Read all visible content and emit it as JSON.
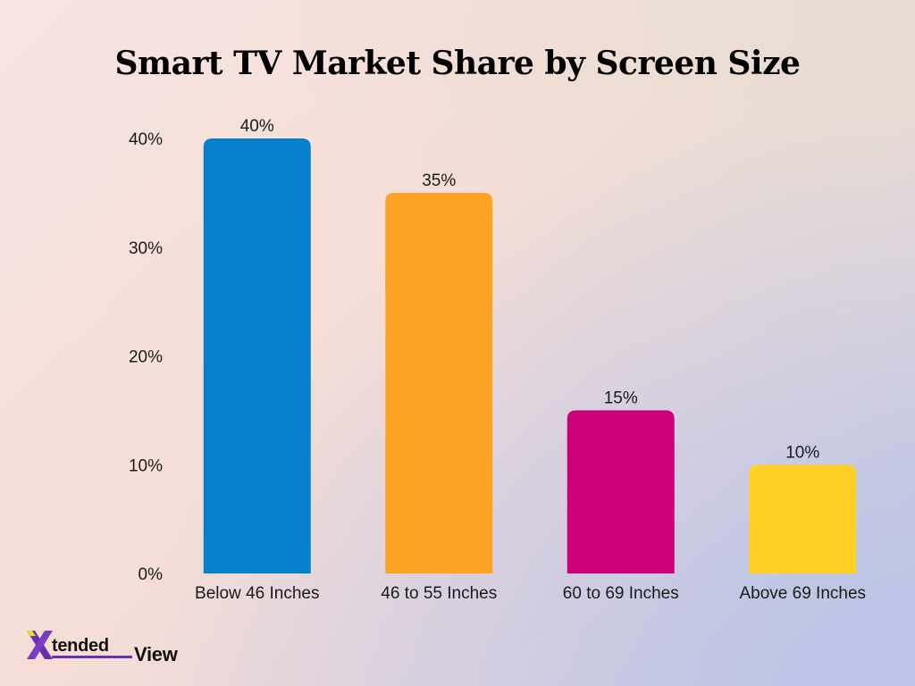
{
  "chart_data": {
    "type": "bar",
    "title": "Smart TV Market Share by Screen Size",
    "categories": [
      "Below 46 Inches",
      "46 to 55 Inches",
      "60 to 69 Inches",
      "Above 69 Inches"
    ],
    "values": [
      40,
      35,
      15,
      10
    ],
    "data_labels": [
      "40%",
      "35%",
      "15%",
      "10%"
    ],
    "colors": [
      "#0680cc",
      "#fda426",
      "#cc007a",
      "#ffd027"
    ],
    "ylim": [
      0,
      40
    ],
    "yticks": [
      0,
      10,
      20,
      30,
      40
    ],
    "ytick_labels": [
      "0%",
      "10%",
      "20%",
      "30%",
      "40%"
    ],
    "xlabel": "",
    "ylabel": "",
    "grid": false,
    "legend": "none"
  },
  "logo": {
    "text_a": "tended",
    "text_b": "View",
    "x_color": "#6a2fb0",
    "x_accent": "#e6e025"
  }
}
